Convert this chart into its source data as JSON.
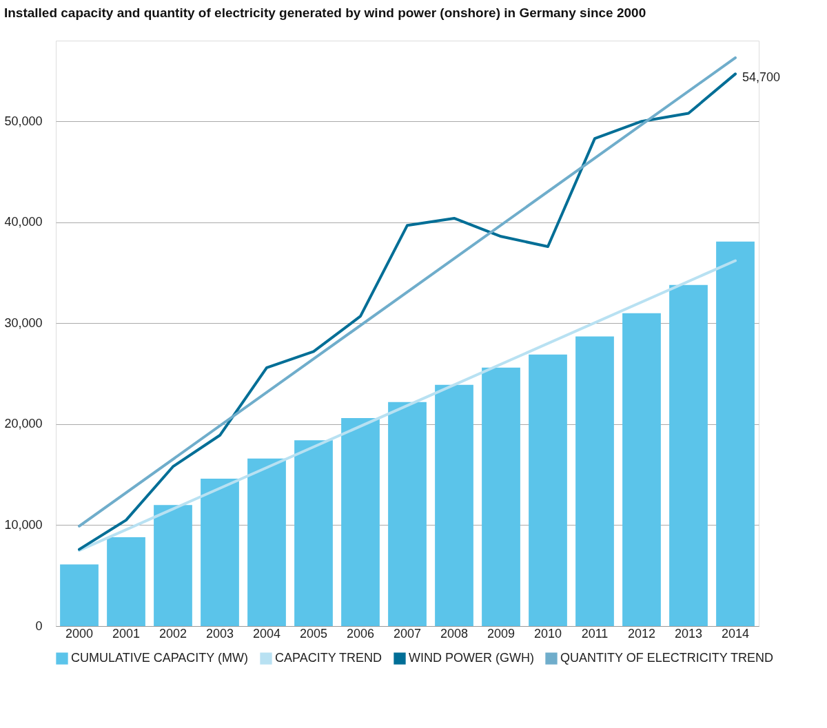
{
  "chart_data": {
    "type": "bar",
    "title": "Installed capacity and quantity of electricity generated by wind power (onshore) in Germany since 2000",
    "categories": [
      "2000",
      "2001",
      "2002",
      "2003",
      "2004",
      "2005",
      "2006",
      "2007",
      "2008",
      "2009",
      "2010",
      "2011",
      "2012",
      "2013",
      "2014"
    ],
    "series": [
      {
        "name": "CUMULATIVE CAPACITY (MW)",
        "type": "bar",
        "color": "#5bc4ea",
        "values": [
          6100,
          8800,
          12000,
          14600,
          16600,
          18400,
          20600,
          22200,
          23900,
          25600,
          26900,
          28700,
          31000,
          33800,
          38100
        ]
      },
      {
        "name": "CAPACITY TREND",
        "type": "line",
        "color": "#b8e1f2",
        "values": [
          7500,
          null,
          null,
          null,
          null,
          null,
          null,
          null,
          null,
          null,
          null,
          null,
          null,
          null,
          36200
        ]
      },
      {
        "name": "WIND POWER (GWH)",
        "type": "line",
        "color": "#006e96",
        "values": [
          7600,
          10500,
          15800,
          18900,
          25600,
          27200,
          30700,
          39700,
          40400,
          38600,
          37600,
          48300,
          50000,
          50800,
          54700
        ],
        "value_labels": [
          null,
          null,
          null,
          null,
          null,
          null,
          null,
          null,
          null,
          null,
          null,
          null,
          null,
          null,
          "54,700"
        ]
      },
      {
        "name": "QUANTITY OF ELECTRICITY TREND",
        "type": "line",
        "color": "#6fadcb",
        "values": [
          9900,
          null,
          null,
          null,
          null,
          null,
          null,
          null,
          null,
          null,
          null,
          null,
          null,
          null,
          56300
        ]
      }
    ],
    "ylim": [
      0,
      58000
    ],
    "yticks": [
      0,
      {
        "value": 10000,
        "label": "10,000"
      },
      {
        "value": 20000,
        "label": "20,000"
      },
      {
        "value": 30000,
        "label": "30,000"
      },
      {
        "value": 40000,
        "label": "40,000"
      },
      {
        "value": 50000,
        "label": "50,000"
      }
    ],
    "grid": "y",
    "legend": "bottom"
  }
}
